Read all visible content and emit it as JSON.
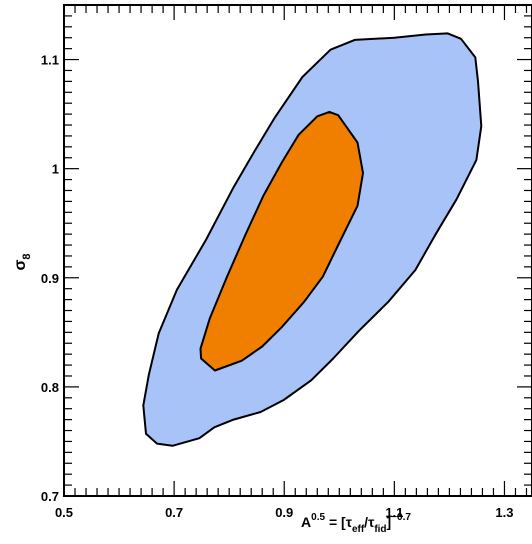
{
  "chart_data": {
    "type": "contour",
    "xlim": [
      0.5,
      1.35
    ],
    "ylim": [
      0.7,
      1.15
    ],
    "x_ticks": [
      0.5,
      0.7,
      0.9,
      1.1,
      1.3
    ],
    "x_tick_labels": [
      "0.5",
      "0.7",
      "0.9",
      "1.1",
      "1.3"
    ],
    "y_ticks": [
      0.7,
      0.8,
      0.9,
      1.0,
      1.1
    ],
    "y_tick_labels": [
      "0.7",
      "0.8",
      "0.9",
      "1",
      "1.1"
    ],
    "xlabel": {
      "base": "A",
      "exp": "0.5",
      "eq": " = [",
      "tau1": "τ",
      "sub1": "eff",
      "slash": "/",
      "tau2": "τ",
      "sub2": "fid",
      "close": "]",
      "exp2": "−0.7"
    },
    "ylabel": {
      "sym": "σ",
      "sub": "8"
    },
    "grid": false,
    "colors": {
      "outer": "#a8c3f8",
      "inner": "#f07f00",
      "stroke": "#000000"
    },
    "contours": [
      {
        "level": "outer",
        "points": [
          [
            0.697,
            0.746
          ],
          [
            0.669,
            0.748
          ],
          [
            0.649,
            0.757
          ],
          [
            0.644,
            0.783
          ],
          [
            0.654,
            0.811
          ],
          [
            0.672,
            0.849
          ],
          [
            0.705,
            0.889
          ],
          [
            0.758,
            0.935
          ],
          [
            0.807,
            0.982
          ],
          [
            0.846,
            1.016
          ],
          [
            0.883,
            1.047
          ],
          [
            0.933,
            1.084
          ],
          [
            0.984,
            1.109
          ],
          [
            1.028,
            1.118
          ],
          [
            1.1,
            1.12
          ],
          [
            1.157,
            1.123
          ],
          [
            1.197,
            1.124
          ],
          [
            1.221,
            1.119
          ],
          [
            1.247,
            1.102
          ],
          [
            1.252,
            1.08
          ],
          [
            1.258,
            1.039
          ],
          [
            1.249,
            1.008
          ],
          [
            1.213,
            0.972
          ],
          [
            1.174,
            0.939
          ],
          [
            1.138,
            0.907
          ],
          [
            1.089,
            0.878
          ],
          [
            1.035,
            0.851
          ],
          [
            0.989,
            0.826
          ],
          [
            0.949,
            0.806
          ],
          [
            0.899,
            0.788
          ],
          [
            0.857,
            0.777
          ],
          [
            0.808,
            0.77
          ],
          [
            0.773,
            0.763
          ],
          [
            0.746,
            0.753
          ]
        ]
      },
      {
        "level": "inner",
        "points": [
          [
            0.774,
            0.815
          ],
          [
            0.749,
            0.826
          ],
          [
            0.748,
            0.835
          ],
          [
            0.765,
            0.863
          ],
          [
            0.796,
            0.901
          ],
          [
            0.83,
            0.94
          ],
          [
            0.862,
            0.975
          ],
          [
            0.896,
            1.006
          ],
          [
            0.926,
            1.031
          ],
          [
            0.96,
            1.048
          ],
          [
            0.982,
            1.052
          ],
          [
            0.998,
            1.049
          ],
          [
            1.033,
            1.024
          ],
          [
            1.043,
            0.996
          ],
          [
            1.033,
            0.966
          ],
          [
            0.998,
            0.93
          ],
          [
            0.97,
            0.901
          ],
          [
            0.936,
            0.878
          ],
          [
            0.896,
            0.855
          ],
          [
            0.86,
            0.837
          ],
          [
            0.823,
            0.824
          ]
        ]
      }
    ]
  }
}
